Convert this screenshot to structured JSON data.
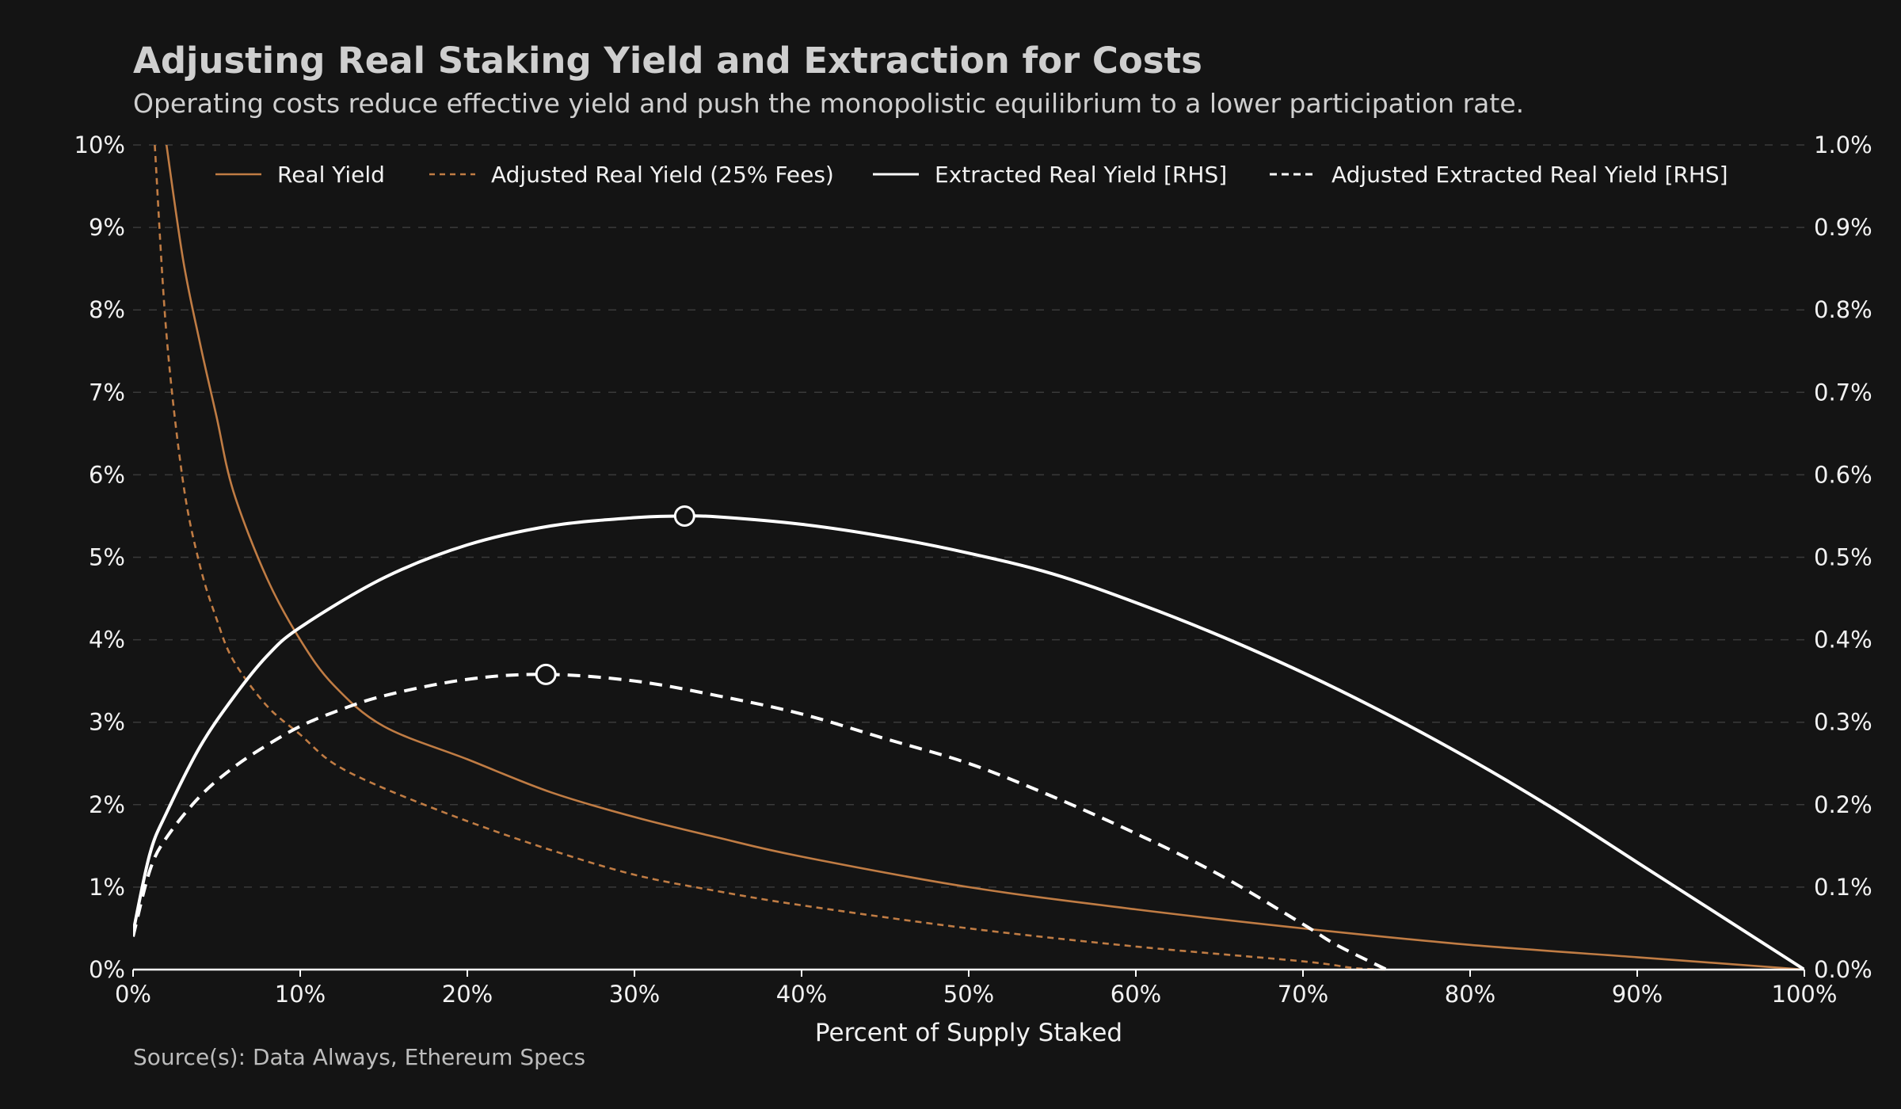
{
  "chart_data": {
    "type": "line",
    "title": "Adjusting Real Staking Yield and Extraction for Costs",
    "subtitle": "Operating costs reduce effective yield and push the monopolistic equilibrium to a lower participation rate.",
    "xlabel": "Percent of Supply Staked",
    "source": "Source(s): Data Always, Ethereum Specs",
    "xlim": [
      0,
      100
    ],
    "ylim_left": [
      0,
      10
    ],
    "ylim_right": [
      0,
      1.0
    ],
    "x_ticks": [
      "0%",
      "10%",
      "20%",
      "30%",
      "40%",
      "50%",
      "60%",
      "70%",
      "80%",
      "90%",
      "100%"
    ],
    "y_ticks_left": [
      "0%",
      "1%",
      "2%",
      "3%",
      "4%",
      "5%",
      "6%",
      "7%",
      "8%",
      "9%",
      "10%"
    ],
    "y_ticks_right": [
      "0.0%",
      "0.1%",
      "0.2%",
      "0.3%",
      "0.4%",
      "0.5%",
      "0.6%",
      "0.7%",
      "0.8%",
      "0.9%",
      "1.0%"
    ],
    "grid": "horizontal dashed",
    "legend_position": "top",
    "colors": {
      "background": "#141414",
      "copper": "#c07c44",
      "white": "#ffffff",
      "grid": "#3a3a3a"
    },
    "series": [
      {
        "name": "Real Yield",
        "axis": "left",
        "style": "solid",
        "color": "#c07c44",
        "x": [
          2,
          3,
          4,
          5,
          6,
          8,
          10,
          12,
          15,
          20,
          25,
          30,
          35,
          40,
          50,
          60,
          70,
          80,
          90,
          100
        ],
        "y": [
          10.0,
          8.6,
          7.6,
          6.7,
          5.8,
          4.75,
          4.0,
          3.45,
          2.95,
          2.55,
          2.15,
          1.85,
          1.6,
          1.37,
          1.0,
          0.73,
          0.5,
          0.3,
          0.15,
          0.0
        ]
      },
      {
        "name": "Adjusted Real Yield (25% Fees)",
        "axis": "left",
        "style": "dashed",
        "color": "#c07c44",
        "x": [
          1.3,
          2,
          3,
          4,
          5,
          6,
          8,
          10,
          12,
          15,
          20,
          25,
          30,
          35,
          40,
          50,
          60,
          70,
          73,
          75
        ],
        "y": [
          10.0,
          7.7,
          5.9,
          4.9,
          4.25,
          3.75,
          3.2,
          2.85,
          2.5,
          2.2,
          1.8,
          1.45,
          1.15,
          0.95,
          0.78,
          0.5,
          0.28,
          0.1,
          0.02,
          0.0
        ]
      },
      {
        "name": "Extracted Real Yield [RHS]",
        "axis": "right",
        "style": "solid",
        "color": "#ffffff",
        "x": [
          0,
          1,
          2,
          4,
          6,
          8,
          10,
          15,
          20,
          25,
          30,
          33,
          35,
          40,
          45,
          50,
          55,
          60,
          65,
          70,
          75,
          80,
          85,
          90,
          95,
          100
        ],
        "y": [
          0.045,
          0.14,
          0.19,
          0.27,
          0.33,
          0.38,
          0.415,
          0.475,
          0.515,
          0.538,
          0.548,
          0.55,
          0.549,
          0.54,
          0.525,
          0.505,
          0.48,
          0.445,
          0.405,
          0.36,
          0.31,
          0.255,
          0.195,
          0.13,
          0.065,
          0.0
        ]
      },
      {
        "name": "Adjusted Extracted Real Yield [RHS]",
        "axis": "right",
        "style": "dashed",
        "color": "#ffffff",
        "x": [
          0,
          1,
          2,
          4,
          6,
          8,
          10,
          12,
          15,
          20,
          24.7,
          30,
          35,
          40,
          45,
          50,
          55,
          60,
          65,
          70,
          72,
          75
        ],
        "y": [
          0.04,
          0.12,
          0.16,
          0.21,
          0.245,
          0.272,
          0.295,
          0.312,
          0.332,
          0.352,
          0.358,
          0.35,
          0.332,
          0.31,
          0.28,
          0.25,
          0.21,
          0.165,
          0.115,
          0.055,
          0.03,
          0.0
        ]
      }
    ],
    "markers": [
      {
        "series": "Extracted Real Yield [RHS]",
        "x": 33,
        "y": 0.55
      },
      {
        "series": "Adjusted Extracted Real Yield [RHS]",
        "x": 24.7,
        "y": 0.358
      }
    ]
  }
}
